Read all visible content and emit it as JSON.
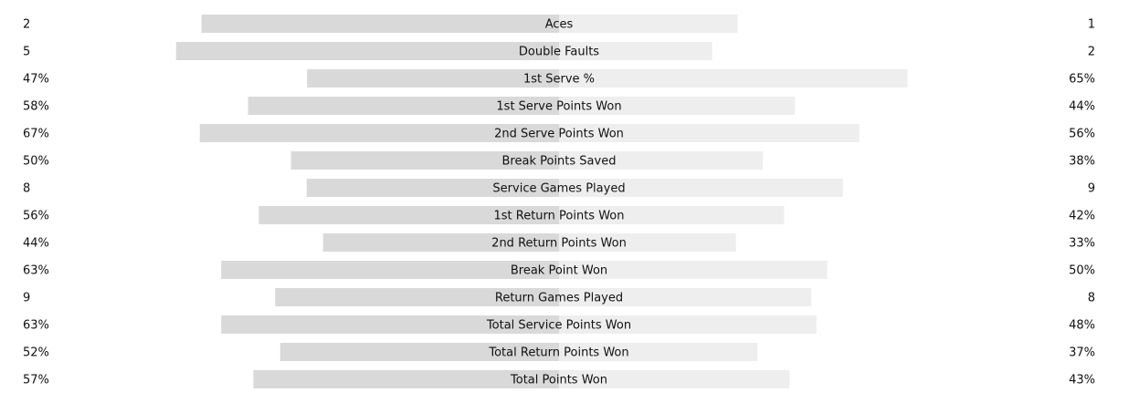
{
  "chart_data": {
    "type": "butterfly",
    "categories": [
      "Aces",
      "Double Faults",
      "1st Serve %",
      "1st Serve Points Won",
      "2nd Serve Points Won",
      "Break Points Saved",
      "Service Games Played",
      "1st Return Points Won",
      "2nd Return Points Won",
      "Break Point Won",
      "Return Games Played",
      "Total Service Points Won",
      "Total Return Points Won",
      "Total Points Won"
    ],
    "bar_scale": [
      "share",
      "share",
      "percent",
      "percent",
      "percent",
      "percent",
      "share",
      "percent",
      "percent",
      "percent",
      "share",
      "percent",
      "percent",
      "percent"
    ],
    "series": [
      {
        "color": "#d9d9d9",
        "values": [
          2,
          5,
          47,
          58,
          67,
          50,
          8,
          56,
          44,
          63,
          9,
          63,
          52,
          57
        ],
        "value_labels": [
          "2",
          "5",
          "47%",
          "58%",
          "67%",
          "50%",
          "8",
          "56%",
          "44%",
          "63%",
          "9",
          "63%",
          "52%",
          "57%"
        ]
      },
      {
        "color": "#eeeeee",
        "values": [
          1,
          2,
          65,
          44,
          56,
          38,
          9,
          42,
          33,
          50,
          8,
          48,
          37,
          43
        ],
        "value_labels": [
          "1",
          "2",
          "65%",
          "44%",
          "56%",
          "38%",
          "9",
          "42%",
          "33%",
          "50%",
          "8",
          "48%",
          "37%",
          "43%"
        ]
      }
    ]
  }
}
